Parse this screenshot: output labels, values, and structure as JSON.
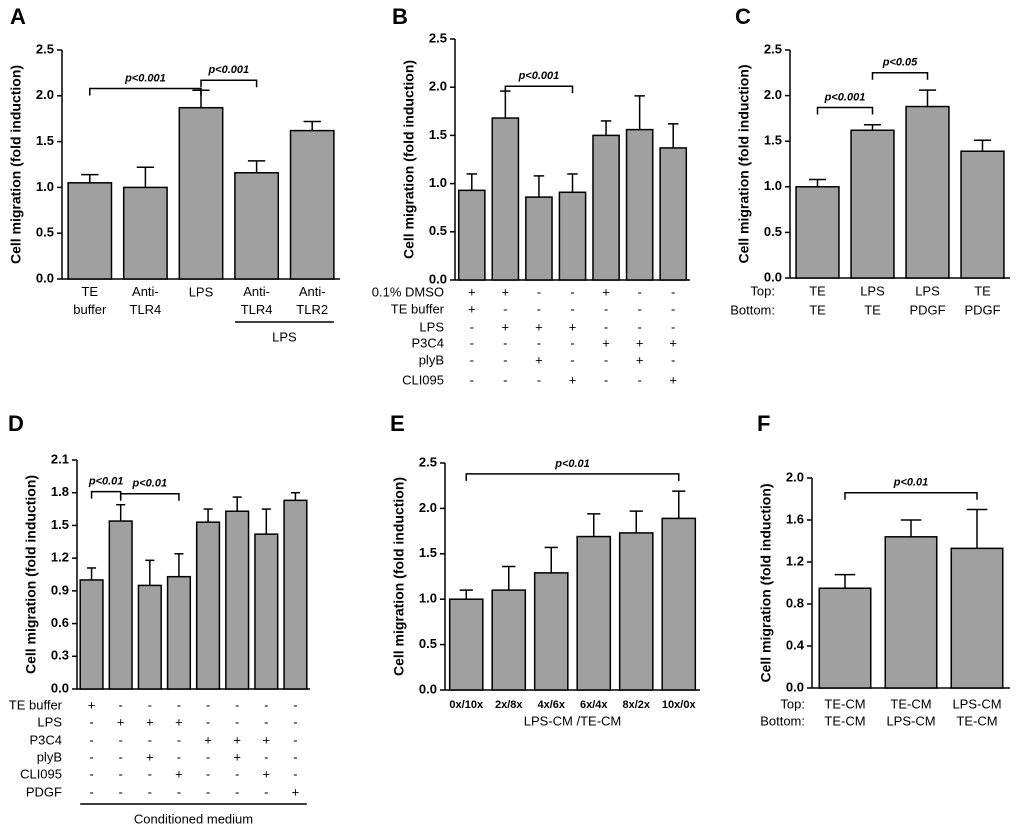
{
  "chart_data": [
    {
      "type": "bar",
      "title": "A",
      "ylabel": "Cell migration (fold induction)",
      "color": "#a0a0a0",
      "categories": [
        "TE\nbuffer",
        "Anti-\nTLR4",
        "LPS",
        "Anti-\nTLR4",
        "Anti-\nTLR2"
      ],
      "values": [
        1.05,
        1.0,
        1.87,
        1.16,
        1.62
      ],
      "errors": [
        0.09,
        0.22,
        0.19,
        0.13,
        0.1
      ],
      "ylim": [
        0,
        2.5
      ],
      "yticks": [
        {
          "value": 0,
          "label": "0.0"
        },
        0.5,
        {
          "value": 1,
          "label": "1.0"
        },
        1.5,
        {
          "value": 2,
          "label": "2.0"
        },
        2.5
      ],
      "annotations": [
        "p<0.001",
        "p<0.001"
      ],
      "group_label": "LPS"
    },
    {
      "type": "bar",
      "title": "B",
      "ylabel": "Cell migration (fold induction)",
      "color": "#a0a0a0",
      "values": [
        0.93,
        1.68,
        0.86,
        0.91,
        1.5,
        1.56,
        1.37
      ],
      "errors": [
        0.17,
        0.28,
        0.22,
        0.19,
        0.15,
        0.35,
        0.25
      ],
      "ylim": [
        0,
        2.5
      ],
      "yticks": [
        {
          "value": 0,
          "label": "0.0"
        },
        0.5,
        {
          "value": 1,
          "label": "1.0"
        },
        1.5,
        {
          "value": 2,
          "label": "2.0"
        },
        2.5
      ],
      "annotations": [
        "p<0.001"
      ],
      "rows": [
        {
          "label": "0.1% DMSO",
          "values": [
            "+",
            "+",
            "-",
            "-",
            "+",
            "-",
            "-"
          ]
        },
        {
          "label": "TE buffer",
          "values": [
            "+",
            "-",
            "-",
            "-",
            "-",
            "-",
            "-"
          ]
        },
        {
          "label": "LPS",
          "values": [
            "-",
            "+",
            "+",
            "+",
            "-",
            "-",
            "-"
          ]
        },
        {
          "label": "P3C4",
          "values": [
            "-",
            "-",
            "-",
            "-",
            "+",
            "+",
            "+"
          ]
        },
        {
          "label": "plyB",
          "values": [
            "-",
            "-",
            "+",
            "-",
            "-",
            "+",
            "-"
          ]
        },
        {
          "label": "CLI095",
          "values": [
            "-",
            "-",
            "-",
            "+",
            "-",
            "-",
            "+"
          ]
        }
      ]
    },
    {
      "type": "bar",
      "title": "C",
      "ylabel": "Cell migration (fold induction)",
      "color": "#a0a0a0",
      "values": [
        1.0,
        1.62,
        1.88,
        1.39
      ],
      "errors": [
        0.08,
        0.06,
        0.18,
        0.12
      ],
      "ylim": [
        0,
        2.5
      ],
      "yticks": [
        {
          "value": 0,
          "label": "0.0"
        },
        0.5,
        {
          "value": 1,
          "label": "1.0"
        },
        1.5,
        {
          "value": 2,
          "label": "2.0"
        },
        2.5
      ],
      "annotations": [
        "p<0.001",
        "p<0.05"
      ],
      "rows": [
        {
          "label": "Top:",
          "values": [
            "TE",
            "LPS",
            "LPS",
            "TE"
          ]
        },
        {
          "label": "Bottom:",
          "values": [
            "TE",
            "TE",
            "PDGF",
            "PDGF"
          ]
        }
      ]
    },
    {
      "type": "bar",
      "title": "D",
      "ylabel": "Cell migration (fold induction)",
      "color": "#a0a0a0",
      "values": [
        1.0,
        1.54,
        0.95,
        1.03,
        1.53,
        1.63,
        1.42,
        1.73
      ],
      "errors": [
        0.11,
        0.15,
        0.23,
        0.21,
        0.12,
        0.13,
        0.23,
        0.07
      ],
      "ylim": [
        0,
        2.1
      ],
      "yticks": [
        {
          "value": 0,
          "label": "0.0"
        },
        0.3,
        0.6,
        0.9,
        1.2,
        1.5,
        1.8,
        2.1
      ],
      "annotations": [
        "p<0.01",
        "p<0.01"
      ],
      "group_label": "Conditioned medium",
      "rows": [
        {
          "label": "TE buffer",
          "values": [
            "+",
            "-",
            "-",
            "-",
            "-",
            "-",
            "-",
            "-"
          ]
        },
        {
          "label": "LPS",
          "values": [
            "-",
            "+",
            "+",
            "+",
            "-",
            "-",
            "-",
            "-"
          ]
        },
        {
          "label": "P3C4",
          "values": [
            "-",
            "-",
            "-",
            "-",
            "+",
            "+",
            "+",
            "-"
          ]
        },
        {
          "label": "plyB",
          "values": [
            "-",
            "-",
            "+",
            "-",
            "-",
            "+",
            "-",
            "-"
          ]
        },
        {
          "label": "CLI095",
          "values": [
            "-",
            "-",
            "-",
            "+",
            "-",
            "-",
            "+",
            "-"
          ]
        },
        {
          "label": "PDGF",
          "values": [
            "-",
            "-",
            "-",
            "-",
            "-",
            "-",
            "-",
            "+"
          ]
        }
      ]
    },
    {
      "type": "bar",
      "title": "E",
      "ylabel": "Cell migration (fold induction)",
      "xlabel": "LPS-CM /TE-CM",
      "color": "#a0a0a0",
      "categories": [
        "0x/10x",
        "2x/8x",
        "4x/6x",
        "6x/4x",
        "8x/2x",
        "10x/0x"
      ],
      "values": [
        1.0,
        1.1,
        1.29,
        1.69,
        1.73,
        1.89
      ],
      "errors": [
        0.1,
        0.26,
        0.28,
        0.25,
        0.24,
        0.3
      ],
      "ylim": [
        0,
        2.5
      ],
      "yticks": [
        {
          "value": 0,
          "label": "0.0"
        },
        0.5,
        {
          "value": 1,
          "label": "1.0"
        },
        1.5,
        {
          "value": 2,
          "label": "2.0"
        },
        2.5
      ],
      "annotations": [
        "p<0.01"
      ]
    },
    {
      "type": "bar",
      "title": "F",
      "ylabel": "Cell migration (fold induction)",
      "color": "#a0a0a0",
      "values": [
        0.95,
        1.44,
        1.33
      ],
      "errors": [
        0.13,
        0.16,
        0.37
      ],
      "ylim": [
        0,
        2.0
      ],
      "yticks": [
        {
          "value": 0,
          "label": "0.0"
        },
        0.4,
        0.8,
        1.2,
        1.6,
        {
          "value": 2,
          "label": "2.0"
        }
      ],
      "annotations": [
        "p<0.01"
      ],
      "rows": [
        {
          "label": "Top:",
          "values": [
            "TE-CM",
            "TE-CM",
            "LPS-CM"
          ]
        },
        {
          "label": "Bottom:",
          "values": [
            "TE-CM",
            "LPS-CM",
            "TE-CM"
          ]
        }
      ]
    }
  ]
}
